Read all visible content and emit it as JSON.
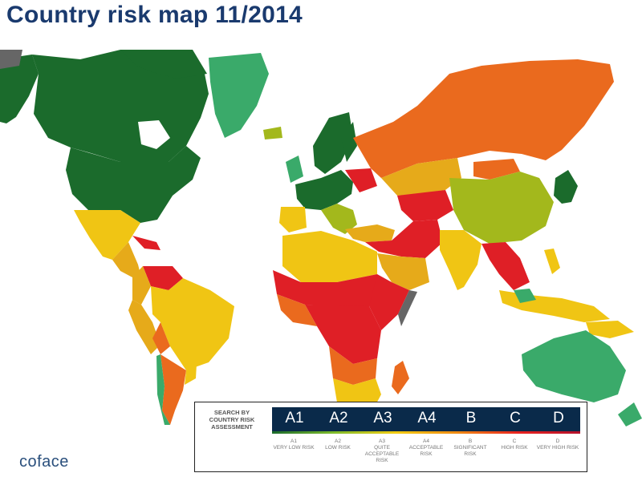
{
  "title": "Country risk map 11/2014",
  "legend": {
    "caption": "SEARCH BY COUNTRY RISK ASSESSMENT",
    "levels": [
      {
        "code": "A1",
        "label": "A1",
        "desc": "VERY LOW RISK",
        "color": "#1b6b2c"
      },
      {
        "code": "A2",
        "label": "A2",
        "desc": "LOW RISK",
        "color": "#3aaa6a"
      },
      {
        "code": "A3",
        "label": "A3",
        "desc": "QUITE ACCEPTABLE RISK",
        "color": "#a3b81c"
      },
      {
        "code": "A4",
        "label": "A4",
        "desc": "ACCEPTABLE RISK",
        "color": "#f0c514"
      },
      {
        "code": "B",
        "label": "B",
        "desc": "SIGNIFICANT RISK",
        "color": "#e6aa1a"
      },
      {
        "code": "C",
        "label": "C",
        "desc": "HIGH RISK",
        "color": "#ea6a1e"
      },
      {
        "code": "D",
        "label": "D",
        "desc": "VERY HIGH RISK",
        "color": "#df1f26"
      }
    ],
    "no_data_color": "#666666"
  },
  "logo": "coface"
}
